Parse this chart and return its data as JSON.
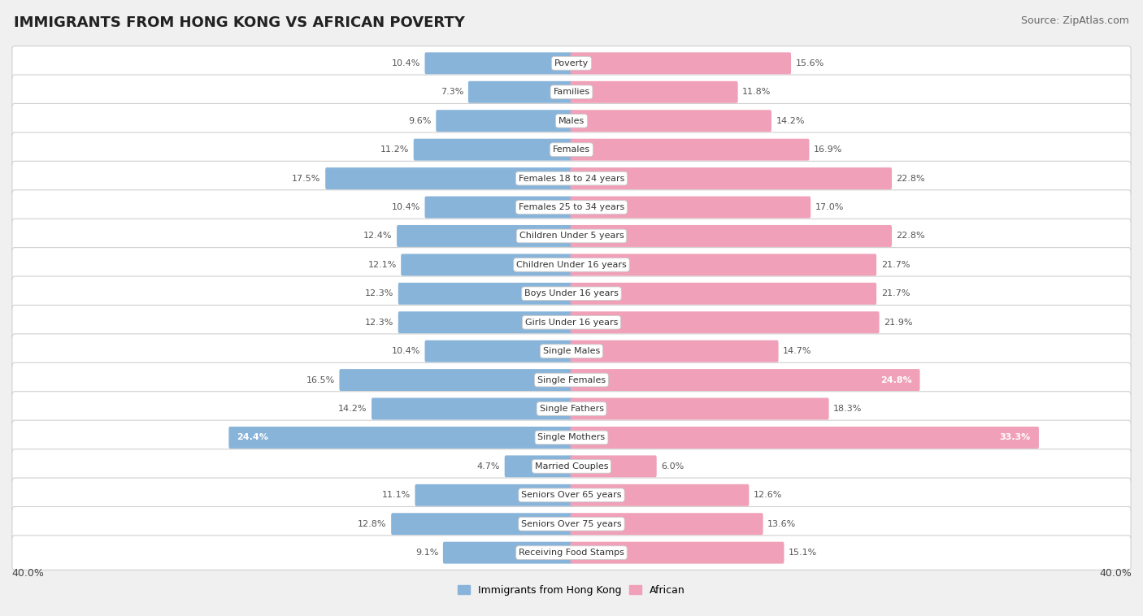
{
  "title": "IMMIGRANTS FROM HONG KONG VS AFRICAN POVERTY",
  "source": "Source: ZipAtlas.com",
  "categories": [
    "Poverty",
    "Families",
    "Males",
    "Females",
    "Females 18 to 24 years",
    "Females 25 to 34 years",
    "Children Under 5 years",
    "Children Under 16 years",
    "Boys Under 16 years",
    "Girls Under 16 years",
    "Single Males",
    "Single Females",
    "Single Fathers",
    "Single Mothers",
    "Married Couples",
    "Seniors Over 65 years",
    "Seniors Over 75 years",
    "Receiving Food Stamps"
  ],
  "hk_values": [
    10.4,
    7.3,
    9.6,
    11.2,
    17.5,
    10.4,
    12.4,
    12.1,
    12.3,
    12.3,
    10.4,
    16.5,
    14.2,
    24.4,
    4.7,
    11.1,
    12.8,
    9.1
  ],
  "african_values": [
    15.6,
    11.8,
    14.2,
    16.9,
    22.8,
    17.0,
    22.8,
    21.7,
    21.7,
    21.9,
    14.7,
    24.8,
    18.3,
    33.3,
    6.0,
    12.6,
    13.6,
    15.1
  ],
  "hk_color": "#89b4d9",
  "african_color": "#f0a0b8",
  "hk_label": "Immigrants from Hong Kong",
  "african_label": "African",
  "max_val": 40.0,
  "bg_color": "#f0f0f0",
  "title_fontsize": 13,
  "source_fontsize": 9,
  "value_fontsize": 8,
  "cat_fontsize": 8
}
